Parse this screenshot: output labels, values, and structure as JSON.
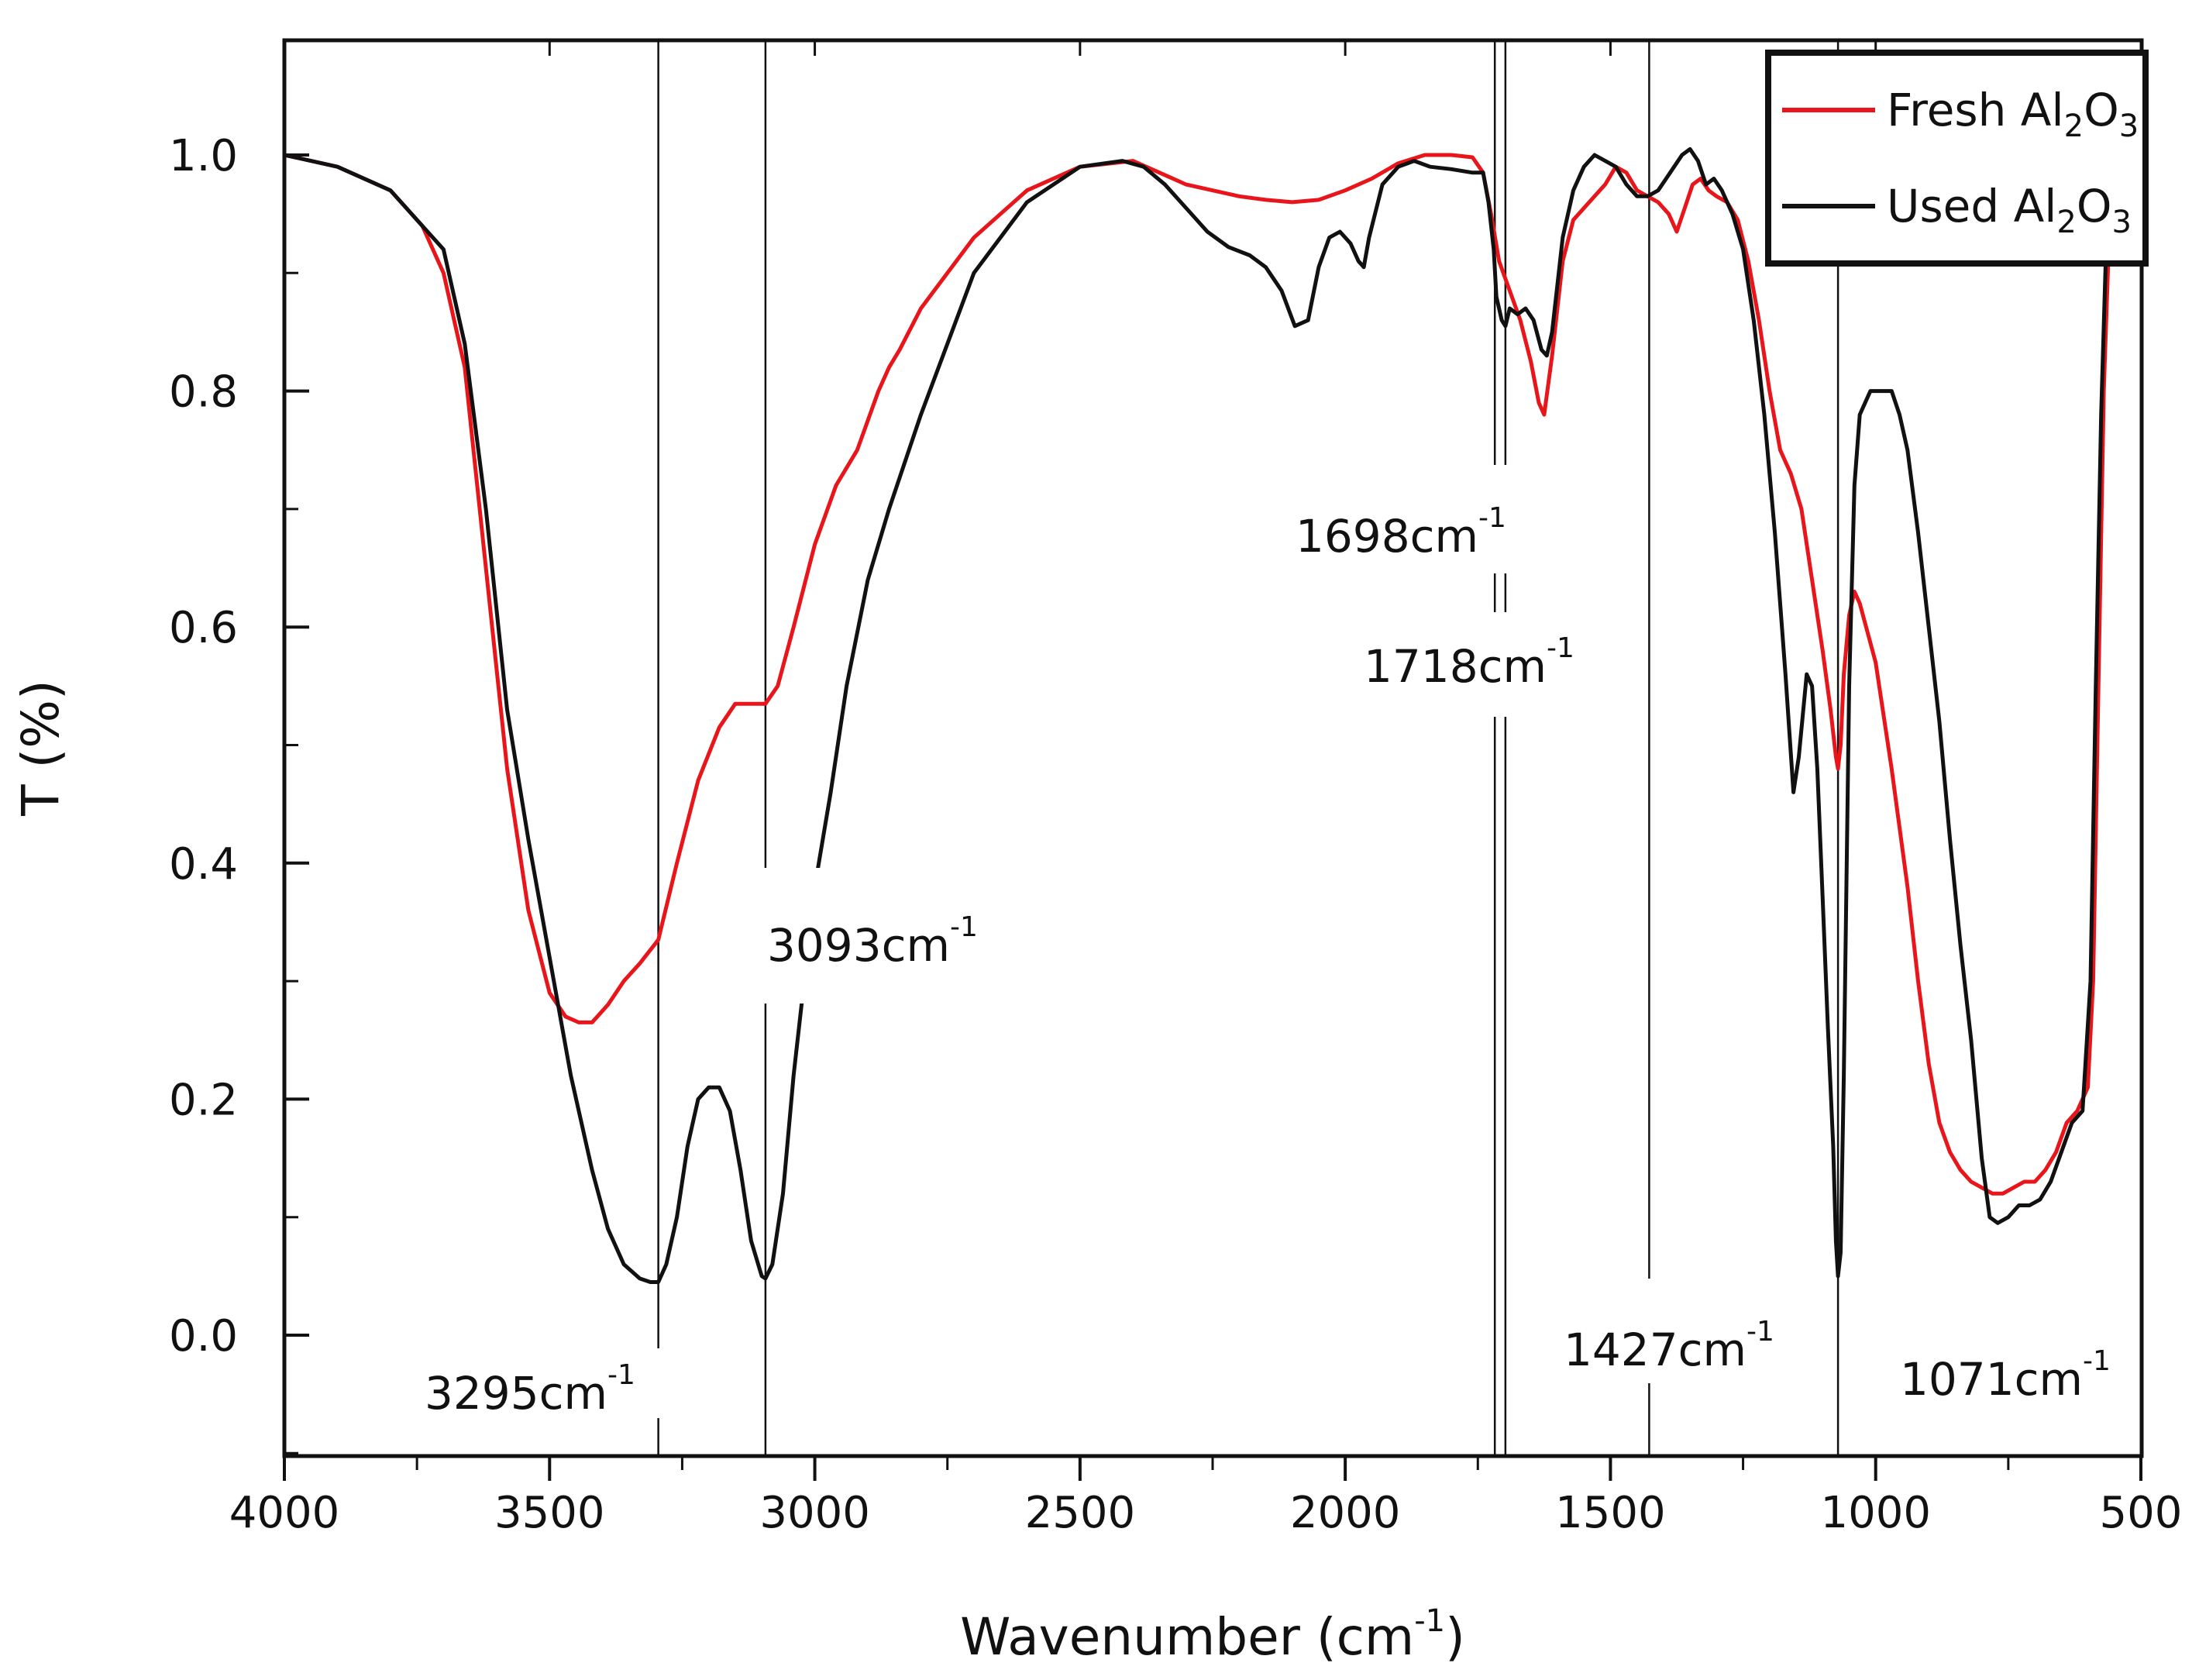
{
  "chart_data": {
    "type": "line",
    "title": "",
    "xlabel": "Wavenumber (cm",
    "xlabel_sup": "-1",
    "xlabel_end": ")",
    "ylabel": "T (%)",
    "xlim": [
      4000,
      500
    ],
    "ylim": [
      -0.1,
      1.1
    ],
    "x_ticks": [
      4000,
      3500,
      3000,
      2500,
      2000,
      1500,
      1000,
      500
    ],
    "x_tick_labels": [
      "4000",
      "3500",
      "3000",
      "2500",
      "2000",
      "1500",
      "1000",
      "500"
    ],
    "y_ticks": [
      0.0,
      0.2,
      0.4,
      0.6,
      0.8,
      1.0
    ],
    "y_tick_labels": [
      "0.0",
      "0.2",
      "0.4",
      "0.6",
      "0.8",
      "1.0"
    ],
    "grid": false,
    "legend_position": "top-right",
    "series": [
      {
        "name": "Fresh Al2O3",
        "label_main": "Fresh Al",
        "label_sub1": "2",
        "label_mid": "O",
        "label_sub2": "3",
        "color": "#e8161b",
        "x": [
          4000,
          3900,
          3800,
          3740,
          3700,
          3660,
          3620,
          3580,
          3540,
          3500,
          3470,
          3445,
          3420,
          3390,
          3360,
          3330,
          3295,
          3260,
          3220,
          3180,
          3150,
          3120,
          3100,
          3093,
          3070,
          3040,
          3000,
          2960,
          2920,
          2880,
          2860,
          2840,
          2800,
          2700,
          2600,
          2500,
          2400,
          2350,
          2300,
          2250,
          2200,
          2150,
          2100,
          2050,
          2000,
          1950,
          1900,
          1850,
          1800,
          1760,
          1740,
          1725,
          1710,
          1690,
          1670,
          1650,
          1635,
          1625,
          1610,
          1590,
          1570,
          1540,
          1510,
          1490,
          1470,
          1450,
          1430,
          1410,
          1390,
          1375,
          1360,
          1345,
          1330,
          1315,
          1300,
          1280,
          1260,
          1240,
          1220,
          1200,
          1180,
          1160,
          1140,
          1120,
          1100,
          1085,
          1075,
          1071,
          1066,
          1060,
          1050,
          1040,
          1030,
          1000,
          970,
          940,
          920,
          900,
          880,
          860,
          840,
          820,
          800,
          780,
          760,
          740,
          720,
          700,
          680,
          660,
          640,
          620,
          600,
          590,
          580,
          570,
          560,
          555
        ],
        "y": [
          1.0,
          0.99,
          0.97,
          0.94,
          0.9,
          0.82,
          0.65,
          0.48,
          0.36,
          0.29,
          0.27,
          0.265,
          0.265,
          0.28,
          0.3,
          0.315,
          0.335,
          0.4,
          0.47,
          0.515,
          0.535,
          0.535,
          0.535,
          0.535,
          0.55,
          0.6,
          0.67,
          0.72,
          0.75,
          0.8,
          0.82,
          0.835,
          0.87,
          0.93,
          0.97,
          0.99,
          0.995,
          0.985,
          0.975,
          0.97,
          0.965,
          0.962,
          0.96,
          0.962,
          0.97,
          0.98,
          0.993,
          1.0,
          1.0,
          0.998,
          0.985,
          0.95,
          0.91,
          0.885,
          0.86,
          0.825,
          0.79,
          0.78,
          0.83,
          0.91,
          0.945,
          0.96,
          0.975,
          0.99,
          0.985,
          0.97,
          0.965,
          0.96,
          0.95,
          0.935,
          0.955,
          0.975,
          0.98,
          0.97,
          0.965,
          0.96,
          0.945,
          0.91,
          0.86,
          0.8,
          0.75,
          0.73,
          0.7,
          0.64,
          0.58,
          0.53,
          0.49,
          0.48,
          0.5,
          0.56,
          0.61,
          0.63,
          0.62,
          0.57,
          0.48,
          0.38,
          0.3,
          0.23,
          0.18,
          0.155,
          0.14,
          0.13,
          0.125,
          0.12,
          0.12,
          0.125,
          0.13,
          0.13,
          0.14,
          0.155,
          0.18,
          0.19,
          0.21,
          0.3,
          0.55,
          0.8,
          0.93,
          1.0
        ]
      },
      {
        "name": "Used Al2O3",
        "label_main": "Used Al",
        "label_sub1": "2",
        "label_mid": "O",
        "label_sub2": "3",
        "color": "#111111",
        "x": [
          4000,
          3900,
          3800,
          3740,
          3700,
          3660,
          3620,
          3580,
          3540,
          3500,
          3460,
          3420,
          3390,
          3360,
          3330,
          3310,
          3295,
          3280,
          3260,
          3240,
          3220,
          3200,
          3180,
          3160,
          3140,
          3120,
          3100,
          3093,
          3080,
          3060,
          3040,
          3020,
          3000,
          2970,
          2940,
          2900,
          2860,
          2800,
          2700,
          2600,
          2500,
          2420,
          2380,
          2340,
          2300,
          2260,
          2220,
          2180,
          2150,
          2120,
          2095,
          2070,
          2050,
          2030,
          2010,
          1990,
          1975,
          1965,
          1955,
          1930,
          1900,
          1870,
          1840,
          1800,
          1760,
          1740,
          1730,
          1720,
          1715,
          1705,
          1698,
          1690,
          1675,
          1660,
          1645,
          1630,
          1620,
          1610,
          1590,
          1570,
          1550,
          1530,
          1510,
          1490,
          1470,
          1450,
          1430,
          1410,
          1395,
          1380,
          1365,
          1350,
          1335,
          1320,
          1305,
          1290,
          1270,
          1250,
          1230,
          1210,
          1190,
          1170,
          1155,
          1145,
          1130,
          1120,
          1110,
          1100,
          1090,
          1080,
          1075,
          1071,
          1066,
          1060,
          1050,
          1040,
          1030,
          1010,
          990,
          970,
          955,
          940,
          920,
          900,
          880,
          860,
          840,
          820,
          800,
          785,
          770,
          750,
          730,
          710,
          690,
          670,
          650,
          630,
          610,
          595,
          585,
          575,
          565,
          558
        ],
        "y": [
          1.0,
          0.99,
          0.97,
          0.94,
          0.92,
          0.84,
          0.7,
          0.53,
          0.42,
          0.32,
          0.22,
          0.14,
          0.09,
          0.06,
          0.048,
          0.045,
          0.045,
          0.06,
          0.1,
          0.16,
          0.2,
          0.21,
          0.21,
          0.19,
          0.14,
          0.08,
          0.05,
          0.048,
          0.06,
          0.12,
          0.22,
          0.3,
          0.38,
          0.46,
          0.55,
          0.64,
          0.7,
          0.78,
          0.9,
          0.96,
          0.99,
          0.995,
          0.99,
          0.975,
          0.955,
          0.935,
          0.922,
          0.915,
          0.905,
          0.885,
          0.855,
          0.86,
          0.905,
          0.93,
          0.935,
          0.925,
          0.91,
          0.905,
          0.93,
          0.975,
          0.99,
          0.995,
          0.99,
          0.988,
          0.985,
          0.985,
          0.96,
          0.92,
          0.88,
          0.86,
          0.855,
          0.87,
          0.865,
          0.87,
          0.86,
          0.835,
          0.83,
          0.85,
          0.93,
          0.97,
          0.99,
          1.0,
          0.995,
          0.99,
          0.975,
          0.965,
          0.965,
          0.97,
          0.98,
          0.99,
          1.0,
          1.005,
          0.995,
          0.975,
          0.98,
          0.97,
          0.95,
          0.92,
          0.86,
          0.78,
          0.68,
          0.56,
          0.46,
          0.49,
          0.56,
          0.55,
          0.48,
          0.37,
          0.26,
          0.16,
          0.08,
          0.05,
          0.07,
          0.22,
          0.55,
          0.72,
          0.78,
          0.8,
          0.8,
          0.8,
          0.78,
          0.75,
          0.68,
          0.6,
          0.52,
          0.42,
          0.33,
          0.25,
          0.15,
          0.1,
          0.095,
          0.1,
          0.11,
          0.11,
          0.115,
          0.13,
          0.155,
          0.18,
          0.19,
          0.3,
          0.55,
          0.78,
          0.93,
          1.0
        ]
      }
    ],
    "reference_lines": [
      3295,
      3093,
      1718,
      1698,
      1427,
      1071
    ],
    "annotations": [
      {
        "id": "a3295",
        "text": "3295cm",
        "sup": "-1",
        "x": 3295
      },
      {
        "id": "a3093",
        "text": "3093cm",
        "sup": "-1",
        "x": 3093
      },
      {
        "id": "a1698",
        "text": "1698cm",
        "sup": "-1",
        "x": 1698
      },
      {
        "id": "a1718",
        "text": "1718cm",
        "sup": "-1",
        "x": 1718
      },
      {
        "id": "a1427",
        "text": "1427cm",
        "sup": "-1",
        "x": 1427
      },
      {
        "id": "a1071",
        "text": "1071cm",
        "sup": "-1",
        "x": 1071
      }
    ]
  }
}
